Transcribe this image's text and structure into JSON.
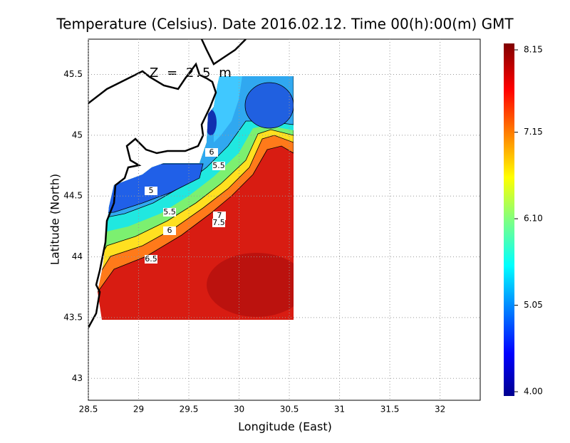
{
  "chart_data": {
    "type": "heatmap",
    "title": "Temperature (Celsius). Date 2016.02.12. Time 00(h):00(m) GMT",
    "annotation": "Z = 2.5 m",
    "x_label": "Longitude (East)",
    "y_label": "Latitude (North)",
    "xlim": [
      28.5,
      32.4
    ],
    "ylim": [
      42.82,
      45.79
    ],
    "xticks": [
      28.5,
      29,
      29.5,
      30,
      30.5,
      31,
      31.5,
      32
    ],
    "yticks": [
      43,
      43.5,
      44,
      44.5,
      45,
      45.5
    ],
    "grid": true,
    "clim": [
      4,
      8.15
    ],
    "colorbar_ticks": [
      {
        "value": 4,
        "label": "4.00"
      },
      5.05,
      {
        "value": 6.1,
        "label": "6.10"
      },
      7.15,
      8.15
    ],
    "contour_labels": [
      6,
      5.5,
      5,
      5.5,
      6,
      6.5,
      7,
      7.5
    ]
  }
}
